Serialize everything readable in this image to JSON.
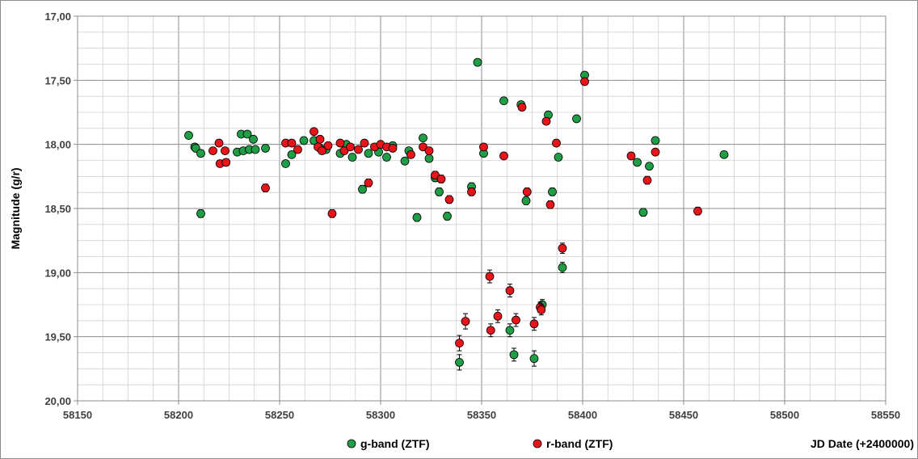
{
  "chart_data": {
    "type": "scatter",
    "xlabel": "JD Date (+2400000)",
    "ylabel": "Magnitude (g/r)",
    "xlim": [
      58150,
      58550
    ],
    "ylim": [
      17.0,
      20.0
    ],
    "y_reversed": true,
    "x_ticks": [
      "58150",
      "58200",
      "58250",
      "58300",
      "58350",
      "58400",
      "58450",
      "58500",
      "58550"
    ],
    "y_ticks": [
      "17,00",
      "17,50",
      "18,00",
      "18,50",
      "19,00",
      "19,50",
      "20,00"
    ],
    "x_tick_values": [
      58150,
      58200,
      58250,
      58300,
      58350,
      58400,
      58450,
      58500,
      58550
    ],
    "y_tick_values": [
      17.0,
      17.5,
      18.0,
      18.5,
      19.0,
      19.5,
      20.0
    ],
    "grid": true,
    "legend_position": "bottom",
    "series": [
      {
        "name": "g-band (ZTF)",
        "color": "#1f9e46",
        "points": [
          [
            58205,
            17.93,
            0.02
          ],
          [
            58208,
            18.02,
            0.02
          ],
          [
            58208.5,
            18.03,
            0.02
          ],
          [
            58211,
            18.07,
            0.02
          ],
          [
            58211,
            18.54,
            0.03
          ],
          [
            58229,
            18.06,
            0.02
          ],
          [
            58231,
            17.92,
            0.02
          ],
          [
            58232,
            18.05,
            0.02
          ],
          [
            58234,
            17.92,
            0.02
          ],
          [
            58235,
            18.04,
            0.02
          ],
          [
            58237,
            17.96,
            0.02
          ],
          [
            58238,
            18.04,
            0.02
          ],
          [
            58243,
            18.03,
            0.02
          ],
          [
            58253,
            18.15,
            0.02
          ],
          [
            58256,
            18.08,
            0.02
          ],
          [
            58262,
            17.97,
            0.02
          ],
          [
            58267,
            17.97,
            0.02
          ],
          [
            58270,
            18.03,
            0.02
          ],
          [
            58273,
            18.04,
            0.02
          ],
          [
            58280,
            18.07,
            0.02
          ],
          [
            58283,
            18.0,
            0.02
          ],
          [
            58286,
            18.1,
            0.02
          ],
          [
            58291,
            18.35,
            0.03
          ],
          [
            58294,
            18.07,
            0.02
          ],
          [
            58299,
            18.06,
            0.02
          ],
          [
            58303,
            18.1,
            0.02
          ],
          [
            58306,
            18.01,
            0.02
          ],
          [
            58312,
            18.13,
            0.02
          ],
          [
            58314,
            18.05,
            0.02
          ],
          [
            58318,
            18.57,
            0.03
          ],
          [
            58321,
            17.95,
            0.02
          ],
          [
            58324,
            18.11,
            0.02
          ],
          [
            58327,
            18.26,
            0.03
          ],
          [
            58329,
            18.37,
            0.03
          ],
          [
            58333,
            18.56,
            0.03
          ],
          [
            58345,
            18.33,
            0.03
          ],
          [
            58339,
            19.7,
            0.06
          ],
          [
            58348,
            17.36,
            0.02
          ],
          [
            58351,
            18.07,
            0.02
          ],
          [
            58361,
            17.66,
            0.02
          ],
          [
            58364,
            19.45,
            0.05
          ],
          [
            58366,
            19.64,
            0.05
          ],
          [
            58369.5,
            17.69,
            0.02
          ],
          [
            58372,
            18.44,
            0.03
          ],
          [
            58376,
            19.67,
            0.06
          ],
          [
            58380,
            19.25,
            0.04
          ],
          [
            58383,
            17.77,
            0.02
          ],
          [
            58385,
            18.37,
            0.03
          ],
          [
            58388,
            18.1,
            0.02
          ],
          [
            58390,
            18.96,
            0.04
          ],
          [
            58397,
            17.8,
            0.02
          ],
          [
            58401,
            17.46,
            0.02
          ],
          [
            58427,
            18.14,
            0.02
          ],
          [
            58430,
            18.53,
            0.03
          ],
          [
            58433,
            18.17,
            0.02
          ],
          [
            58436,
            17.97,
            0.02
          ],
          [
            58470,
            18.08,
            0.02
          ]
        ]
      },
      {
        "name": "r-band (ZTF)",
        "color": "#e8141a",
        "points": [
          [
            58217,
            18.05,
            0.02
          ],
          [
            58220,
            17.99,
            0.02
          ],
          [
            58220.5,
            18.15,
            0.02
          ],
          [
            58223,
            18.05,
            0.02
          ],
          [
            58223.5,
            18.14,
            0.02
          ],
          [
            58243,
            18.34,
            0.03
          ],
          [
            58253,
            17.99,
            0.02
          ],
          [
            58256,
            17.99,
            0.02
          ],
          [
            58259,
            18.04,
            0.02
          ],
          [
            58267,
            17.9,
            0.02
          ],
          [
            58269,
            18.02,
            0.02
          ],
          [
            58270,
            17.96,
            0.02
          ],
          [
            58271,
            18.05,
            0.02
          ],
          [
            58274,
            18.01,
            0.02
          ],
          [
            58276,
            18.54,
            0.03
          ],
          [
            58280,
            17.99,
            0.02
          ],
          [
            58282,
            18.05,
            0.02
          ],
          [
            58285,
            18.02,
            0.02
          ],
          [
            58289,
            18.04,
            0.02
          ],
          [
            58292,
            17.99,
            0.02
          ],
          [
            58294,
            18.3,
            0.03
          ],
          [
            58297,
            18.02,
            0.02
          ],
          [
            58300,
            18.0,
            0.02
          ],
          [
            58303,
            18.02,
            0.02
          ],
          [
            58306,
            18.03,
            0.02
          ],
          [
            58315,
            18.08,
            0.02
          ],
          [
            58321,
            18.02,
            0.02
          ],
          [
            58324,
            18.05,
            0.02
          ],
          [
            58327,
            18.24,
            0.03
          ],
          [
            58330,
            18.27,
            0.03
          ],
          [
            58334,
            18.43,
            0.03
          ],
          [
            58339,
            19.55,
            0.06
          ],
          [
            58342,
            19.38,
            0.06
          ],
          [
            58345,
            18.37,
            0.03
          ],
          [
            58351,
            18.02,
            0.02
          ],
          [
            58354,
            19.03,
            0.05
          ],
          [
            58354.5,
            19.45,
            0.05
          ],
          [
            58358,
            19.34,
            0.05
          ],
          [
            58361,
            18.09,
            0.02
          ],
          [
            58364,
            19.14,
            0.05
          ],
          [
            58367,
            19.37,
            0.05
          ],
          [
            58370,
            17.71,
            0.02
          ],
          [
            58372.5,
            18.37,
            0.03
          ],
          [
            58376,
            19.4,
            0.05
          ],
          [
            58379,
            19.27,
            0.04
          ],
          [
            58379.5,
            19.29,
            0.04
          ],
          [
            58382,
            17.82,
            0.02
          ],
          [
            58384,
            18.47,
            0.03
          ],
          [
            58387,
            17.99,
            0.02
          ],
          [
            58390,
            18.81,
            0.04
          ],
          [
            58401,
            17.51,
            0.02
          ],
          [
            58424,
            18.09,
            0.02
          ],
          [
            58432,
            18.28,
            0.03
          ],
          [
            58436,
            18.06,
            0.02
          ],
          [
            58457,
            18.52,
            0.03
          ]
        ]
      }
    ]
  }
}
